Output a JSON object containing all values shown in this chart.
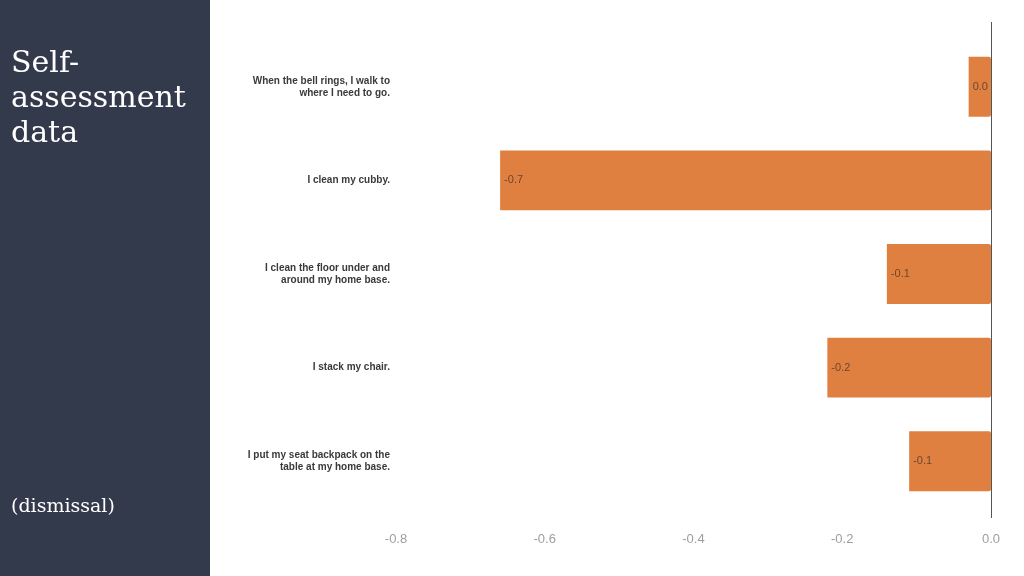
{
  "chart_data": {
    "type": "bar",
    "orientation": "horizontal",
    "title": "Self-assessment data",
    "subtitle": "(dismissal)",
    "categories": [
      "When the bell rings, I walk to where I need to go.",
      "I clean my cubby.",
      "I clean the floor under and around my home base.",
      "I stack my chair.",
      "I put my seat backpack on the table at my home base."
    ],
    "values": [
      -0.03,
      -0.66,
      -0.14,
      -0.22,
      -0.11
    ],
    "value_labels": [
      "0.0",
      "-0.7",
      "-0.1",
      "-0.2",
      "-0.1"
    ],
    "color": "#e08040",
    "xlim": [
      -0.8,
      0
    ],
    "xticks": [
      -0.8,
      -0.6,
      -0.4,
      -0.2,
      {
        "value": 0,
        "label": "0.0"
      }
    ]
  }
}
